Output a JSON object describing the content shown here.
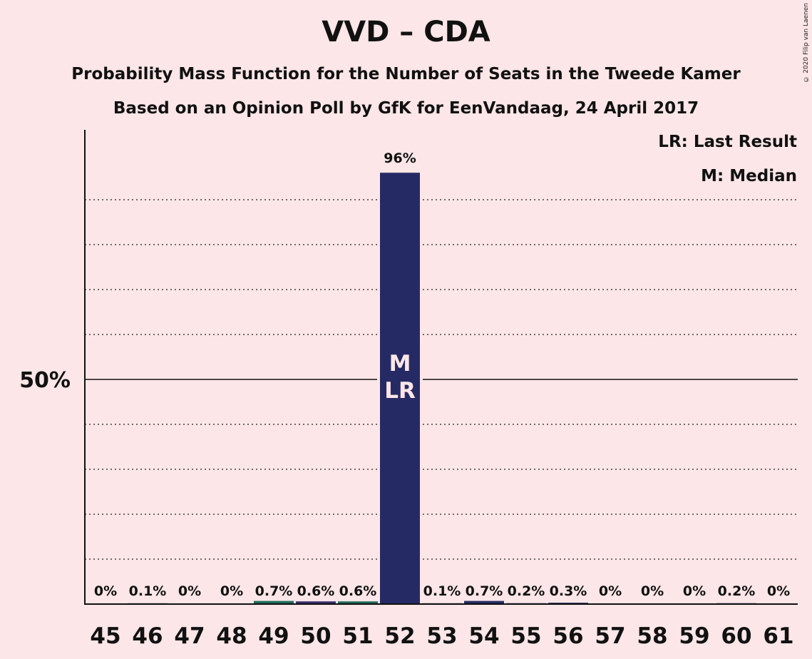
{
  "chart_data": {
    "type": "bar",
    "title": "VVD – CDA",
    "subtitle": "Probability Mass Function for the Number of Seats in the Tweede Kamer",
    "subtitle2": "Based on an Opinion Poll by GfK for EenVandaag, 24 April 2017",
    "copyright": "© 2020 Filip van Laenen",
    "legend": [
      "LR: Last Result",
      "M: Median"
    ],
    "legend_placement": "top-right",
    "categories": [
      "45",
      "46",
      "47",
      "48",
      "49",
      "50",
      "51",
      "52",
      "53",
      "54",
      "55",
      "56",
      "57",
      "58",
      "59",
      "60",
      "61"
    ],
    "values": [
      0,
      0.1,
      0,
      0,
      0.7,
      0.6,
      0.6,
      96,
      0.1,
      0.7,
      0.2,
      0.3,
      0,
      0,
      0,
      0.2,
      0
    ],
    "value_labels": [
      "0%",
      "0.1%",
      "0%",
      "0%",
      "0.7%",
      "0.6%",
      "0.6%",
      "96%",
      "0.1%",
      "0.7%",
      "0.2%",
      "0.3%",
      "0%",
      "0%",
      "0%",
      "0.2%",
      "0%"
    ],
    "bar_colors": [
      "#262a64",
      "#262a64",
      "#262a64",
      "#262a64",
      "#1f6b5a",
      "#3a2a6a",
      "#1f6b5a",
      "#262a64",
      "#262a64",
      "#262a64",
      "#262a64",
      "#262a64",
      "#262a64",
      "#262a64",
      "#262a64",
      "#262a64",
      "#262a64"
    ],
    "median_marker": {
      "category": "52",
      "labels": [
        "M",
        "LR"
      ]
    },
    "ylim": [
      0,
      105
    ],
    "y_tick_label": "50%",
    "y_tick_value": 50,
    "gridlines": [
      10,
      20,
      30,
      40,
      60,
      70,
      80,
      90
    ],
    "grid": true
  }
}
